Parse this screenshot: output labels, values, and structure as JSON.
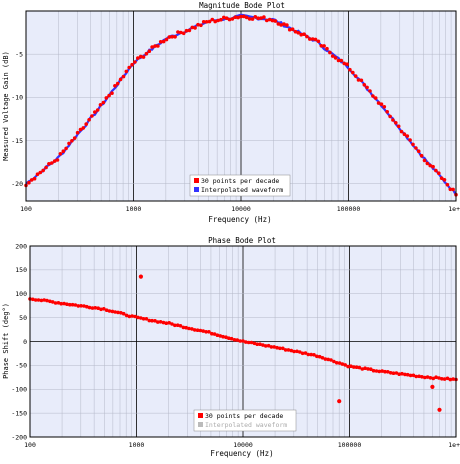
{
  "chart_data": [
    {
      "type": "scatter",
      "title": "Magnitude Bode Plot",
      "xlabel": "Frequency (Hz)",
      "ylabel": "Measured Voltage Gain (dB)",
      "x_scale": "log",
      "xlim": [
        100,
        1000000
      ],
      "ylim": [
        -22,
        0
      ],
      "x_tick_labels": [
        "100",
        "1000",
        "10000",
        "100000",
        "1e+"
      ],
      "y_ticks": [
        -5,
        -10,
        -15,
        -20
      ],
      "y_tick_labels": [
        "-5",
        "-10",
        "-15",
        "-20"
      ],
      "grid": true,
      "background": "#e8ecfa",
      "legend_position": "lower-center",
      "series": [
        {
          "name": "30 points per decade",
          "color": "#ff0000",
          "points": [
            [
              100,
              -20.0
            ],
            [
              200,
              -17.0
            ],
            [
              500,
              -11.0
            ],
            [
              1000,
              -6.0
            ],
            [
              2000,
              -3.2
            ],
            [
              5000,
              -1.2
            ],
            [
              10000,
              -0.6
            ],
            [
              20000,
              -1.0
            ],
            [
              50000,
              -3.5
            ],
            [
              100000,
              -6.5
            ],
            [
              200000,
              -10.8
            ],
            [
              500000,
              -17.0
            ],
            [
              1000000,
              -21.2
            ]
          ]
        },
        {
          "name": "Interpolated waveform",
          "color": "#3333ff",
          "points": [
            [
              100,
              -20.0
            ],
            [
              200,
              -17.0
            ],
            [
              500,
              -11.0
            ],
            [
              1000,
              -6.0
            ],
            [
              2000,
              -3.2
            ],
            [
              5000,
              -1.2
            ],
            [
              10000,
              -0.6
            ],
            [
              20000,
              -1.0
            ],
            [
              50000,
              -3.5
            ],
            [
              100000,
              -6.5
            ],
            [
              200000,
              -10.8
            ],
            [
              500000,
              -17.0
            ],
            [
              1000000,
              -21.2
            ]
          ]
        }
      ]
    },
    {
      "type": "scatter",
      "title": "Phase Bode Plot",
      "xlabel": "Frequency (Hz)",
      "ylabel": "Phase Shift (deg°)",
      "x_scale": "log",
      "xlim": [
        100,
        1000000
      ],
      "ylim": [
        -200,
        200
      ],
      "x_tick_labels": [
        "100",
        "1000",
        "10000",
        "100000",
        "1e+"
      ],
      "y_ticks": [
        200,
        150,
        100,
        50,
        0,
        -50,
        -100,
        -150,
        -200
      ],
      "y_tick_labels": [
        "200",
        "150",
        "100",
        "50",
        "0",
        "-50",
        "-100",
        "-150",
        "-200"
      ],
      "grid": true,
      "background": "#e8ecfa",
      "legend_position": "lower-center",
      "series": [
        {
          "name": "30 points per decade",
          "color": "#ff0000",
          "points": [
            [
              100,
              90
            ],
            [
              200,
              80
            ],
            [
              500,
              68
            ],
            [
              1000,
              50
            ],
            [
              2000,
              38
            ],
            [
              5000,
              18
            ],
            [
              10000,
              0
            ],
            [
              20000,
              -12
            ],
            [
              50000,
              -30
            ],
            [
              100000,
              -52
            ],
            [
              200000,
              -63
            ],
            [
              500000,
              -74
            ],
            [
              1000000,
              -80
            ]
          ],
          "outliers": [
            [
              1100,
              136
            ],
            [
              80000,
              -125
            ],
            [
              600000,
              -95
            ],
            [
              700000,
              -143
            ]
          ]
        },
        {
          "name": "Interpolated waveform",
          "color": "#bbbbbb",
          "points": []
        }
      ]
    }
  ]
}
